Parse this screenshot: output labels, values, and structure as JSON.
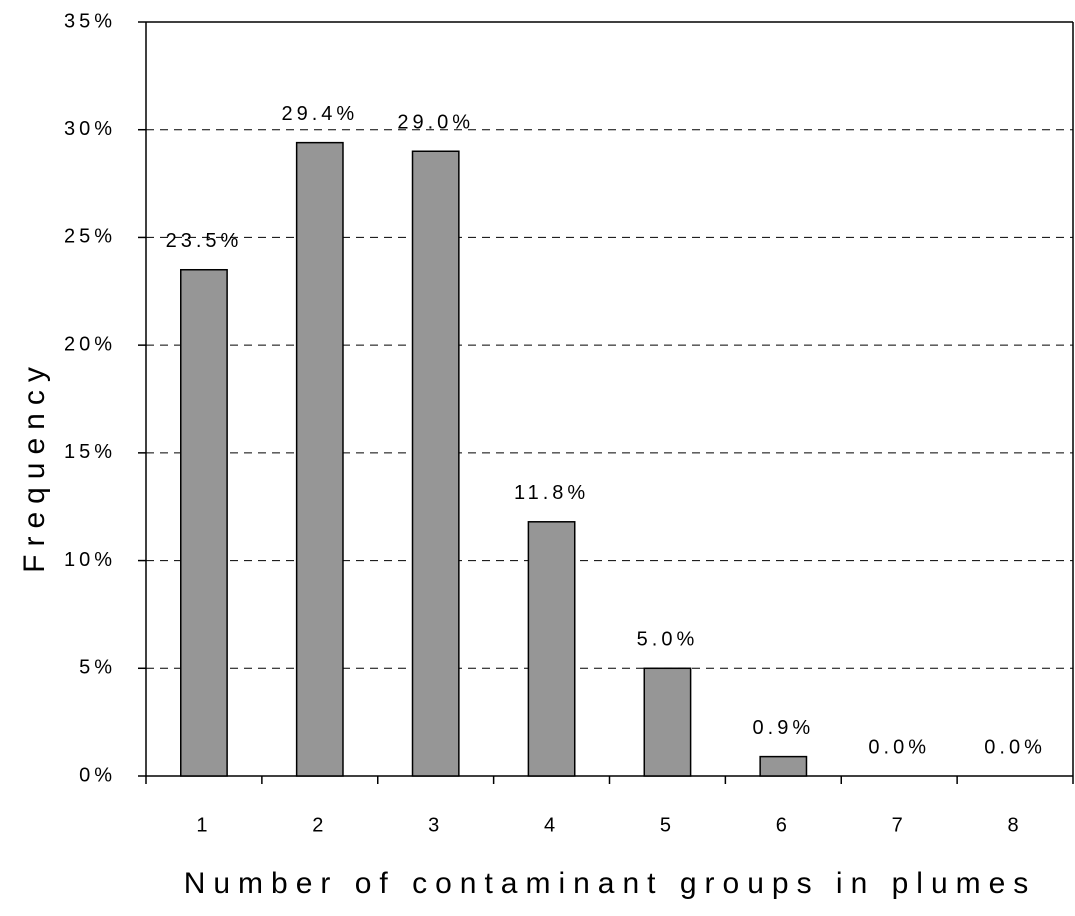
{
  "chart_data": {
    "type": "bar",
    "x_label": "Number of contaminant groups in plumes",
    "y_label": "Frequency",
    "categories": [
      "1",
      "2",
      "3",
      "4",
      "5",
      "6",
      "7",
      "8"
    ],
    "values": [
      23.5,
      29.4,
      29.0,
      11.8,
      5.0,
      0.9,
      0.0,
      0.0
    ],
    "value_labels": [
      "23.5%",
      "29.4%",
      "29.0%",
      "11.8%",
      "5.0%",
      "0.9%",
      "0.0%",
      "0.0%"
    ],
    "color": "#969696",
    "ylim": [
      0,
      35
    ],
    "yticks": [
      {
        "value": 0,
        "label": "0%"
      },
      {
        "value": 5,
        "label": "5%"
      },
      {
        "value": 10,
        "label": "10%"
      },
      {
        "value": 15,
        "label": "15%"
      },
      {
        "value": 20,
        "label": "20%"
      },
      {
        "value": 25,
        "label": "25%"
      },
      {
        "value": 30,
        "label": "30%"
      },
      {
        "value": 35,
        "label": "35%"
      }
    ],
    "grid": true
  }
}
